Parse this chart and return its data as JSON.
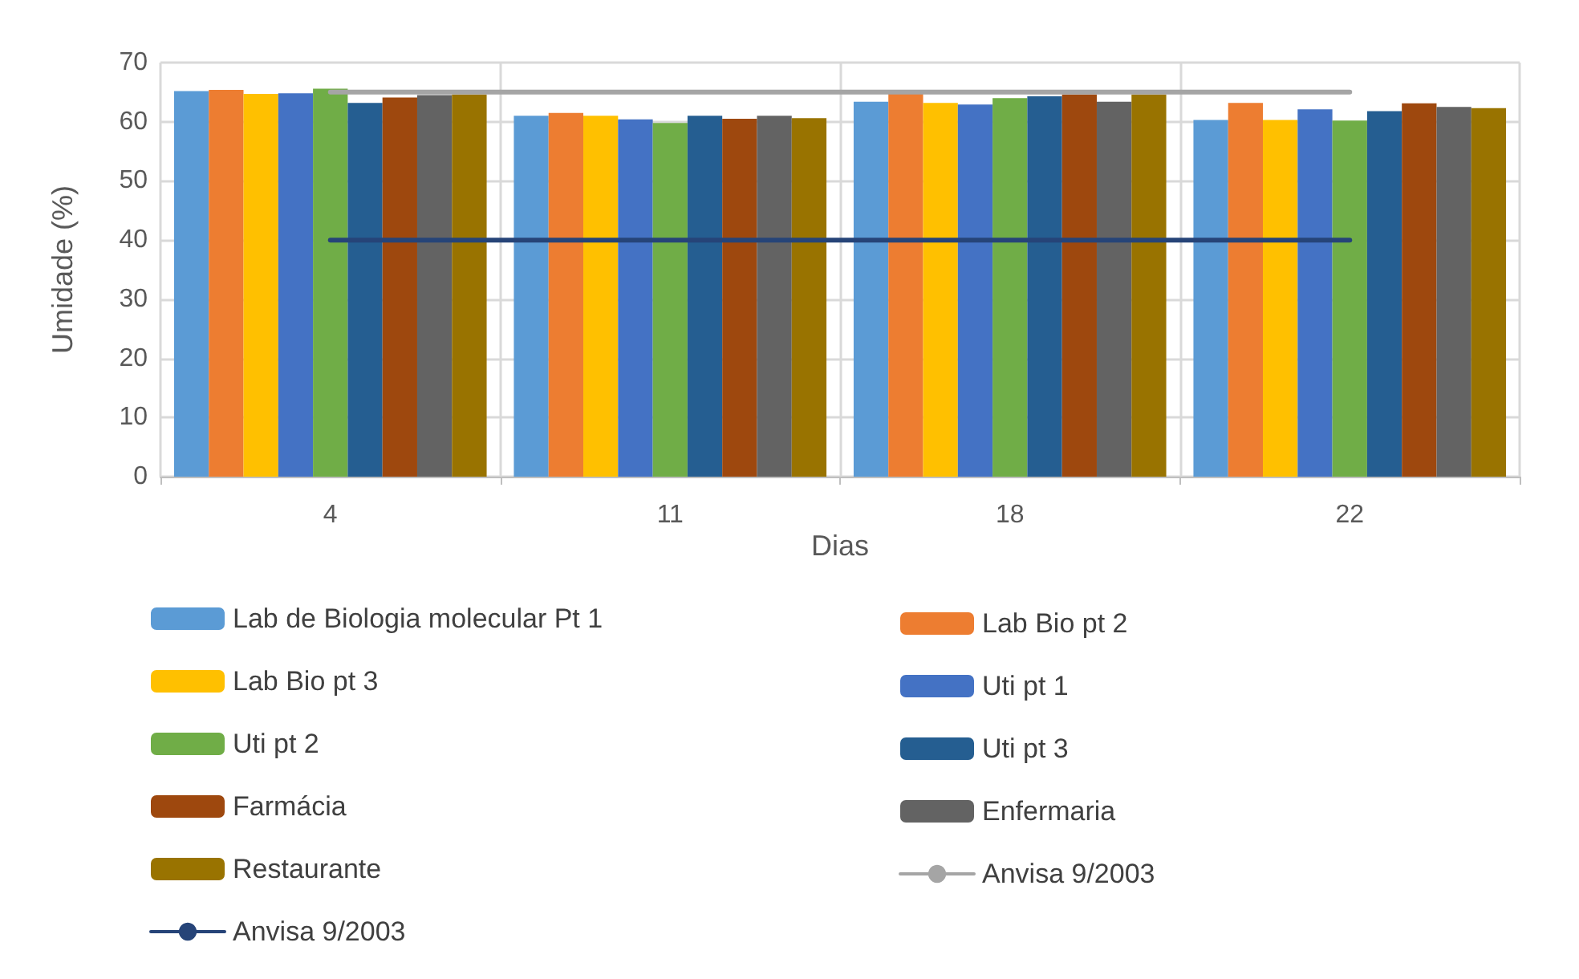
{
  "chart_data": {
    "type": "bar",
    "xlabel": "Dias",
    "ylabel": "Umidade (%)",
    "categories": [
      "4",
      "11",
      "18",
      "22"
    ],
    "ylim": [
      0,
      70
    ],
    "yticks": [
      0,
      10,
      20,
      30,
      40,
      50,
      60,
      70
    ],
    "grid": true,
    "legend": "bottom",
    "marker": "none",
    "line_style": "solid",
    "series": [
      {
        "name": "Lab de Biologia molecular Pt 1",
        "color": "#5b9bd5",
        "values": [
          65.2,
          61.0,
          63.4,
          60.3
        ]
      },
      {
        "name": "Lab Bio pt 2",
        "color": "#ed7d31",
        "values": [
          65.4,
          61.5,
          64.7,
          63.2
        ]
      },
      {
        "name": "Lab Bio pt 3",
        "color": "#ffc000",
        "values": [
          64.7,
          61.0,
          63.2,
          60.3
        ]
      },
      {
        "name": "Uti pt 1",
        "color": "#4472c4",
        "values": [
          64.8,
          60.4,
          62.9,
          62.1
        ]
      },
      {
        "name": "Uti pt 2",
        "color": "#70ad47",
        "values": [
          65.6,
          59.8,
          64.0,
          60.2
        ]
      },
      {
        "name": "Uti pt 3",
        "color": "#255e91",
        "values": [
          63.2,
          61.0,
          64.3,
          61.8
        ]
      },
      {
        "name": "Farmácia",
        "color": "#9e480e",
        "values": [
          64.1,
          60.5,
          64.6,
          63.1
        ]
      },
      {
        "name": "Enfermaria",
        "color": "#636363",
        "values": [
          64.5,
          61.0,
          63.4,
          62.5
        ]
      },
      {
        "name": "Restaurante",
        "color": "#997300",
        "values": [
          64.6,
          60.6,
          64.6,
          62.3
        ]
      },
      {
        "name": "Anvisa 9/2003",
        "type": "line",
        "color": "#a5a5a5",
        "values": [
          65,
          65,
          65,
          65
        ]
      },
      {
        "name": "Anvisa 9/2003",
        "type": "line",
        "color": "#264478",
        "values": [
          40,
          40,
          40,
          40
        ]
      }
    ]
  }
}
